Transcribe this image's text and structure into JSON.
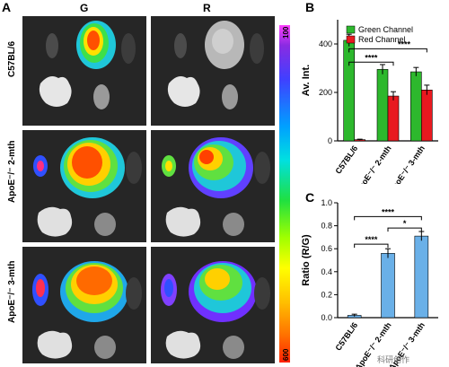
{
  "panels": {
    "A": {
      "letter": "A",
      "col_G": "G",
      "col_R": "R",
      "rows": [
        "C57BL/6",
        "ApoE⁻/⁻ 2-mth",
        "ApoE⁻/⁻ 3-mth"
      ],
      "colorbar_max": "100",
      "colorbar_min": "600"
    },
    "B": {
      "letter": "B"
    },
    "C": {
      "letter": "C"
    }
  },
  "watermark": "科研创作",
  "chart_data": [
    {
      "id": "B",
      "type": "bar",
      "ylabel": "Av. Int.",
      "ylim": [
        0,
        500
      ],
      "yticks": [
        0,
        200,
        400
      ],
      "categories": [
        "C57BL/6",
        "ApoE⁻/⁻ 2-mth",
        "ApoE⁻/⁻ 3-mth"
      ],
      "series": [
        {
          "name": "Green Channel",
          "color": "#2db82d",
          "values": [
            415,
            295,
            285
          ],
          "errors": [
            25,
            20,
            18
          ]
        },
        {
          "name": "Red Channel",
          "color": "#e8191f",
          "values": [
            5,
            185,
            210
          ],
          "errors": [
            2,
            18,
            20
          ]
        }
      ],
      "legend_position": "top-right",
      "significance": [
        "****",
        "****"
      ]
    },
    {
      "id": "C",
      "type": "bar",
      "ylabel": "Ratio (R/G)",
      "ylim": [
        0,
        1.0
      ],
      "yticks": [
        0.0,
        0.2,
        0.4,
        0.6,
        0.8,
        1.0
      ],
      "categories": [
        "C57BL/6",
        "ApoE⁻/⁻ 2-mth",
        "ApoE⁻/⁻ 3-mth"
      ],
      "series": [
        {
          "color": "#6ab0e8",
          "values": [
            0.02,
            0.56,
            0.71
          ],
          "errors": [
            0.01,
            0.04,
            0.04
          ]
        }
      ],
      "significance": [
        "****",
        "****",
        "*"
      ]
    }
  ]
}
